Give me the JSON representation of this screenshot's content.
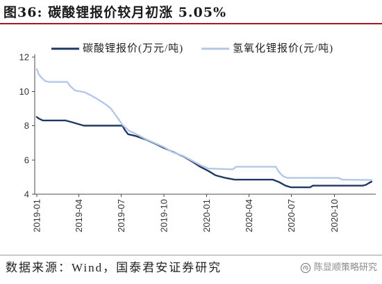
{
  "chart_data": {
    "type": "line",
    "title": "图36: 碳酸锂报价较月初涨 5.05%",
    "xlabel": "",
    "ylabel": "",
    "xlim": [
      "2019-01-01",
      "2020-12-20"
    ],
    "ylim": [
      4,
      12
    ],
    "yticks": [
      4,
      6,
      8,
      10,
      12
    ],
    "xticks": [
      "2019-01",
      "2019-04",
      "2019-07",
      "2019-10",
      "2020-01",
      "2020-04",
      "2020-07",
      "2020-10"
    ],
    "grid": false,
    "legend": "top",
    "series": [
      {
        "name": "碳酸锂报价(万元/吨)",
        "color": "#1f3864",
        "x": [
          "2019-01-01",
          "2019-01-06",
          "2019-01-14",
          "2019-03-04",
          "2019-03-18",
          "2019-03-30",
          "2019-04-12",
          "2019-07-04",
          "2019-07-09",
          "2019-07-16",
          "2019-08-01",
          "2019-08-22",
          "2019-09-12",
          "2019-10-01",
          "2019-10-22",
          "2019-11-12",
          "2019-12-01",
          "2019-12-18",
          "2020-01-05",
          "2020-01-20",
          "2020-02-10",
          "2020-03-01",
          "2020-05-22",
          "2020-06-05",
          "2020-06-18",
          "2020-06-30",
          "2020-08-10",
          "2020-08-16",
          "2020-12-01",
          "2020-12-08",
          "2020-12-14",
          "2020-12-20"
        ],
        "y": [
          8.5,
          8.4,
          8.3,
          8.3,
          8.2,
          8.1,
          8.0,
          8.0,
          7.75,
          7.5,
          7.4,
          7.2,
          6.95,
          6.7,
          6.45,
          6.2,
          5.9,
          5.6,
          5.35,
          5.1,
          4.95,
          4.85,
          4.85,
          4.7,
          4.5,
          4.4,
          4.4,
          4.5,
          4.5,
          4.55,
          4.65,
          4.73
        ]
      },
      {
        "name": "氢氧化锂报价(元/吨)",
        "color": "#b4c7e7",
        "x": [
          "2019-01-01",
          "2019-01-05",
          "2019-01-11",
          "2019-01-19",
          "2019-01-27",
          "2019-03-07",
          "2019-03-14",
          "2019-03-24",
          "2019-04-14",
          "2019-04-25",
          "2019-05-08",
          "2019-05-20",
          "2019-05-31",
          "2019-06-09",
          "2019-06-17",
          "2019-06-25",
          "2019-07-04",
          "2019-07-18",
          "2019-08-03",
          "2019-08-24",
          "2019-09-10",
          "2019-10-01",
          "2019-10-20",
          "2019-11-10",
          "2019-12-01",
          "2019-12-18",
          "2020-01-04",
          "2020-02-26",
          "2020-03-04",
          "2020-05-28",
          "2020-06-04",
          "2020-06-13",
          "2020-06-22",
          "2020-10-10",
          "2020-10-18",
          "2020-12-20"
        ],
        "y": [
          11.3,
          11.0,
          10.8,
          10.6,
          10.55,
          10.55,
          10.3,
          10.05,
          9.95,
          9.8,
          9.6,
          9.4,
          9.2,
          9.0,
          8.7,
          8.4,
          8.05,
          7.7,
          7.5,
          7.2,
          7.0,
          6.75,
          6.45,
          6.25,
          5.95,
          5.7,
          5.5,
          5.45,
          5.6,
          5.6,
          5.3,
          5.05,
          4.95,
          4.95,
          4.85,
          4.83
        ]
      }
    ]
  },
  "source": "数据来源：Wind，国泰君安证券研究",
  "watermark": {
    "text": "陈显顺策略研究",
    "icon": "wechat-icon"
  }
}
